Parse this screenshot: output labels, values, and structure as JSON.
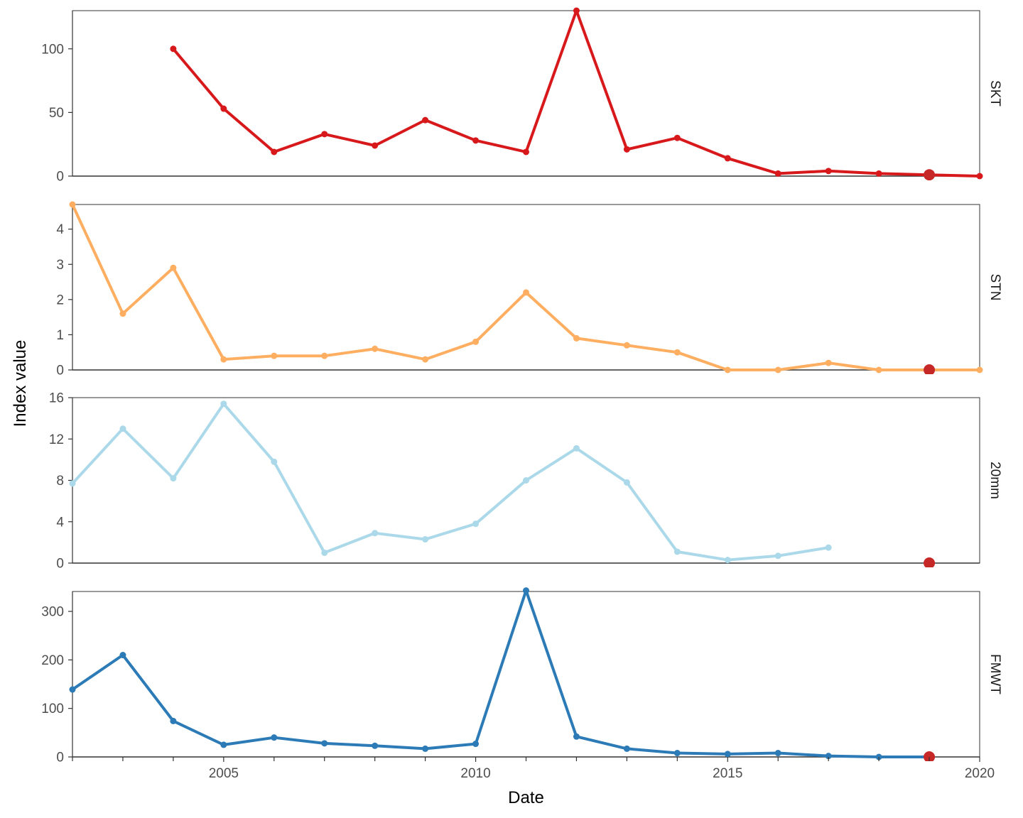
{
  "chart_data": {
    "type": "line",
    "xlabel": "Date",
    "ylabel": "Index value",
    "xlim": [
      2002,
      2020
    ],
    "x_ticks": [
      2005,
      2010,
      2015,
      2020
    ],
    "highlight_color": "#C62828",
    "panels": [
      {
        "label": "SKT",
        "color": "#D7191C",
        "ylim": [
          0,
          130
        ],
        "y_ticks": [
          0,
          50,
          100
        ],
        "x": [
          2004,
          2005,
          2006,
          2007,
          2008,
          2009,
          2010,
          2011,
          2012,
          2013,
          2014,
          2015,
          2016,
          2017,
          2018,
          2019,
          2020
        ],
        "values": [
          100,
          53,
          19,
          33,
          24,
          44,
          28,
          19,
          130,
          21,
          30,
          14,
          2,
          4,
          2,
          1,
          0
        ],
        "highlight": {
          "x": 2019,
          "value": 1
        }
      },
      {
        "label": "STN",
        "color": "#FDAE61",
        "ylim": [
          0,
          4.7
        ],
        "y_ticks": [
          0,
          1,
          2,
          3,
          4
        ],
        "x": [
          2002,
          2003,
          2004,
          2005,
          2006,
          2007,
          2008,
          2009,
          2010,
          2011,
          2012,
          2013,
          2014,
          2015,
          2016,
          2017,
          2018,
          2019,
          2020
        ],
        "values": [
          4.7,
          1.6,
          2.9,
          0.3,
          0.4,
          0.4,
          0.6,
          0.3,
          0.8,
          2.2,
          0.9,
          0.7,
          0.5,
          0.0,
          0.0,
          0.2,
          0.0,
          0.0,
          0.0
        ],
        "highlight": {
          "x": 2019,
          "value": 0
        }
      },
      {
        "label": "20mm",
        "color": "#ABD9E9",
        "ylim": [
          0,
          16
        ],
        "y_ticks": [
          0,
          4,
          8,
          12,
          16
        ],
        "x": [
          2002,
          2003,
          2004,
          2005,
          2006,
          2007,
          2008,
          2009,
          2010,
          2011,
          2012,
          2013,
          2014,
          2015,
          2016,
          2017
        ],
        "values": [
          7.7,
          13.0,
          8.2,
          15.4,
          9.8,
          1.0,
          2.9,
          2.3,
          3.8,
          8.0,
          11.1,
          7.8,
          1.1,
          0.3,
          0.7,
          1.5
        ],
        "highlight": {
          "x": 2019,
          "value": 0
        }
      },
      {
        "label": "FMWT",
        "color": "#2C7BB6",
        "ylim": [
          0,
          341
        ],
        "y_ticks": [
          0,
          100,
          200,
          300
        ],
        "x": [
          2002,
          2003,
          2004,
          2005,
          2006,
          2007,
          2008,
          2009,
          2010,
          2011,
          2012,
          2013,
          2014,
          2015,
          2016,
          2017,
          2018,
          2019
        ],
        "values": [
          139,
          210,
          74,
          25,
          40,
          28,
          23,
          17,
          27,
          343,
          42,
          17,
          8,
          6,
          8,
          2,
          0,
          0
        ],
        "highlight": {
          "x": 2019,
          "value": 0
        }
      }
    ]
  }
}
